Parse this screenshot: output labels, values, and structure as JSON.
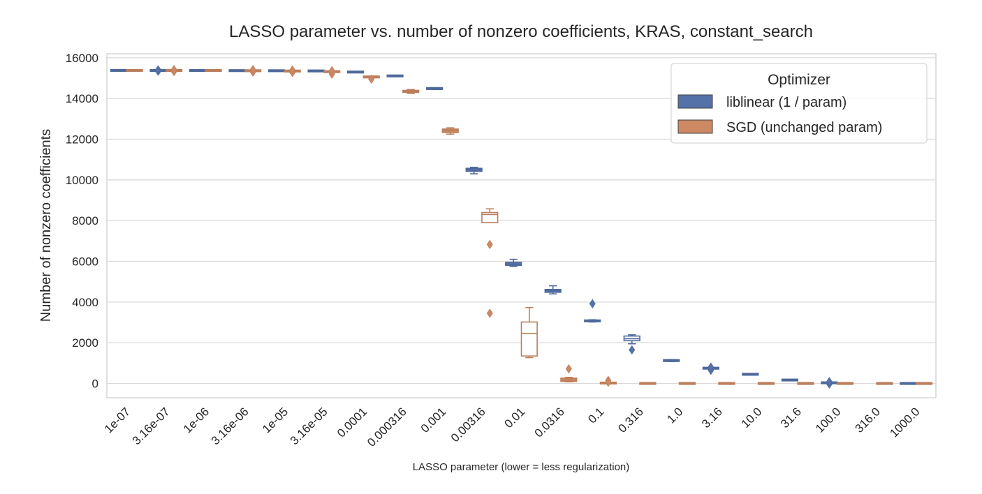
{
  "chart_data": {
    "type": "box",
    "title": "LASSO parameter vs. number of nonzero coefficients, KRAS, constant_search",
    "xlabel": "LASSO parameter (lower = less regularization)",
    "ylabel": "Number of nonzero coefficients",
    "ylim": [
      -700,
      16200
    ],
    "yticks": [
      0,
      2000,
      4000,
      6000,
      8000,
      10000,
      12000,
      14000,
      16000
    ],
    "grid": true,
    "categories": [
      "1e-07",
      "3.16e-07",
      "1e-06",
      "3.16e-06",
      "1e-05",
      "3.16e-05",
      "0.0001",
      "0.000316",
      "0.001",
      "0.00316",
      "0.01",
      "0.0316",
      "0.1",
      "0.316",
      "1.0",
      "3.16",
      "10.0",
      "31.6",
      "100.0",
      "316.0",
      "1000.0"
    ],
    "legend": {
      "title": "Optimizer",
      "position": "upper right"
    },
    "series": [
      {
        "name": "liblinear (1 / param)",
        "color": "#5572a8",
        "boxes": [
          {
            "category": "1e-07",
            "whislo": 15370,
            "q1": 15375,
            "med": 15380,
            "q3": 15385,
            "whishi": 15390,
            "fliers": []
          },
          {
            "category": "3.16e-07",
            "whislo": 15365,
            "q1": 15370,
            "med": 15375,
            "q3": 15380,
            "whishi": 15385,
            "fliers": [
              15340,
              15410
            ]
          },
          {
            "category": "1e-06",
            "whislo": 15365,
            "q1": 15370,
            "med": 15375,
            "q3": 15380,
            "whishi": 15385,
            "fliers": []
          },
          {
            "category": "3.16e-06",
            "whislo": 15360,
            "q1": 15365,
            "med": 15370,
            "q3": 15375,
            "whishi": 15380,
            "fliers": []
          },
          {
            "category": "1e-05",
            "whislo": 15355,
            "q1": 15360,
            "med": 15365,
            "q3": 15370,
            "whishi": 15375,
            "fliers": []
          },
          {
            "category": "3.16e-05",
            "whislo": 15345,
            "q1": 15350,
            "med": 15355,
            "q3": 15360,
            "whishi": 15365,
            "fliers": []
          },
          {
            "category": "0.0001",
            "whislo": 15290,
            "q1": 15295,
            "med": 15300,
            "q3": 15305,
            "whishi": 15310,
            "fliers": []
          },
          {
            "category": "0.000316",
            "whislo": 15090,
            "q1": 15100,
            "med": 15110,
            "q3": 15120,
            "whishi": 15130,
            "fliers": []
          },
          {
            "category": "0.001",
            "whislo": 14450,
            "q1": 14470,
            "med": 14490,
            "q3": 14510,
            "whishi": 14530,
            "fliers": []
          },
          {
            "category": "0.00316",
            "whislo": 10300,
            "q1": 10420,
            "med": 10500,
            "q3": 10570,
            "whishi": 10620,
            "fliers": []
          },
          {
            "category": "0.01",
            "whislo": 5750,
            "q1": 5800,
            "med": 5860,
            "q3": 5950,
            "whishi": 6100,
            "fliers": []
          },
          {
            "category": "0.0316",
            "whislo": 4400,
            "q1": 4480,
            "med": 4560,
            "q3": 4620,
            "whishi": 4800,
            "fliers": []
          },
          {
            "category": "0.1",
            "whislo": 3020,
            "q1": 3040,
            "med": 3070,
            "q3": 3110,
            "whishi": 3130,
            "fliers": [
              3920
            ]
          },
          {
            "category": "0.316",
            "whislo": 1950,
            "q1": 2100,
            "med": 2200,
            "q3": 2330,
            "whishi": 2390,
            "fliers": [
              1650
            ]
          },
          {
            "category": "1.0",
            "whislo": 1080,
            "q1": 1100,
            "med": 1120,
            "q3": 1150,
            "whishi": 1170,
            "fliers": []
          },
          {
            "category": "3.16",
            "whislo": 720,
            "q1": 730,
            "med": 750,
            "q3": 770,
            "whishi": 790,
            "fliers": [
              650,
              800
            ]
          },
          {
            "category": "10.0",
            "whislo": 420,
            "q1": 430,
            "med": 450,
            "q3": 470,
            "whishi": 490,
            "fliers": []
          },
          {
            "category": "31.6",
            "whislo": 150,
            "q1": 160,
            "med": 170,
            "q3": 180,
            "whishi": 190,
            "fliers": []
          },
          {
            "category": "100.0",
            "whislo": 20,
            "q1": 25,
            "med": 30,
            "q3": 40,
            "whishi": 50,
            "fliers": [
              -30,
              90
            ]
          },
          {
            "category": "316.0",
            "whislo": 0,
            "q1": 0,
            "med": 0,
            "q3": 0,
            "whishi": 0,
            "fliers": [],
            "hidden": true
          },
          {
            "category": "1000.0",
            "whislo": 0,
            "q1": 0,
            "med": 0,
            "q3": 0,
            "whishi": 0,
            "fliers": []
          }
        ]
      },
      {
        "name": "SGD (unchanged param)",
        "color": "#cc8963",
        "boxes": [
          {
            "category": "1e-07",
            "whislo": 15370,
            "q1": 15375,
            "med": 15380,
            "q3": 15385,
            "whishi": 15390,
            "fliers": []
          },
          {
            "category": "3.16e-07",
            "whislo": 15365,
            "q1": 15370,
            "med": 15375,
            "q3": 15380,
            "whishi": 15385,
            "fliers": [
              15320,
              15420
            ]
          },
          {
            "category": "1e-06",
            "whislo": 15365,
            "q1": 15370,
            "med": 15375,
            "q3": 15380,
            "whishi": 15385,
            "fliers": []
          },
          {
            "category": "3.16e-06",
            "whislo": 15355,
            "q1": 15360,
            "med": 15365,
            "q3": 15370,
            "whishi": 15375,
            "fliers": [
              15300,
              15420
            ]
          },
          {
            "category": "1e-05",
            "whislo": 15340,
            "q1": 15345,
            "med": 15350,
            "q3": 15355,
            "whishi": 15360,
            "fliers": [
              15280,
              15400
            ]
          },
          {
            "category": "3.16e-05",
            "whislo": 15300,
            "q1": 15310,
            "med": 15320,
            "q3": 15330,
            "whishi": 15340,
            "fliers": [
              15200,
              15360
            ]
          },
          {
            "category": "0.0001",
            "whislo": 15020,
            "q1": 15040,
            "med": 15060,
            "q3": 15080,
            "whishi": 15100,
            "fliers": [
              14950
            ]
          },
          {
            "category": "0.000316",
            "whislo": 14250,
            "q1": 14300,
            "med": 14350,
            "q3": 14400,
            "whishi": 14440,
            "fliers": []
          },
          {
            "category": "0.001",
            "whislo": 12250,
            "q1": 12330,
            "med": 12420,
            "q3": 12500,
            "whishi": 12560,
            "fliers": []
          },
          {
            "category": "0.00316",
            "whislo": 7900,
            "q1": 7900,
            "med": 8300,
            "q3": 8400,
            "whishi": 8580,
            "fliers": [
              6830,
              3450
            ]
          },
          {
            "category": "0.01",
            "whislo": 1270,
            "q1": 1350,
            "med": 2450,
            "q3": 3020,
            "whishi": 3730,
            "fliers": []
          },
          {
            "category": "0.0316",
            "whislo": 80,
            "q1": 100,
            "med": 160,
            "q3": 260,
            "whishi": 300,
            "fliers": [
              720
            ]
          },
          {
            "category": "0.1",
            "whislo": 5,
            "q1": 10,
            "med": 20,
            "q3": 30,
            "whishi": 40,
            "fliers": [
              150,
              60
            ]
          },
          {
            "category": "0.316",
            "whislo": 0,
            "q1": 0,
            "med": 0,
            "q3": 0,
            "whishi": 0,
            "fliers": []
          },
          {
            "category": "1.0",
            "whislo": 0,
            "q1": 0,
            "med": 0,
            "q3": 0,
            "whishi": 0,
            "fliers": []
          },
          {
            "category": "3.16",
            "whislo": 0,
            "q1": 0,
            "med": 0,
            "q3": 0,
            "whishi": 0,
            "fliers": []
          },
          {
            "category": "10.0",
            "whislo": 0,
            "q1": 0,
            "med": 0,
            "q3": 0,
            "whishi": 0,
            "fliers": []
          },
          {
            "category": "31.6",
            "whislo": 0,
            "q1": 0,
            "med": 0,
            "q3": 0,
            "whishi": 0,
            "fliers": []
          },
          {
            "category": "100.0",
            "whislo": 0,
            "q1": 0,
            "med": 0,
            "q3": 0,
            "whishi": 0,
            "fliers": []
          },
          {
            "category": "316.0",
            "whislo": 0,
            "q1": 0,
            "med": 0,
            "q3": 0,
            "whishi": 0,
            "fliers": []
          },
          {
            "category": "1000.0",
            "whislo": 0,
            "q1": 0,
            "med": 0,
            "q3": 0,
            "whishi": 0,
            "fliers": []
          }
        ]
      }
    ]
  }
}
